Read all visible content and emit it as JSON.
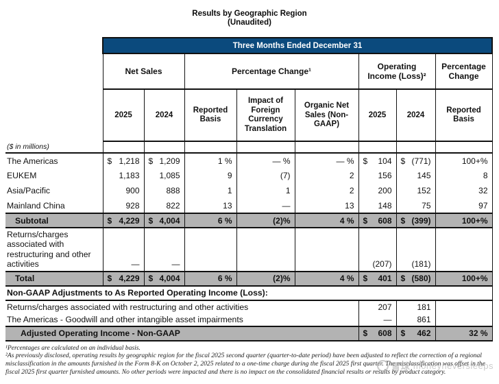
{
  "title": {
    "line1": "Results by Geographic Region",
    "line2": "(Unaudited)"
  },
  "banner": "Three Months Ended December 31",
  "colors": {
    "banner_bg": "#0b4a7d",
    "banner_text": "#ffffff",
    "gray_row_bg": "#b3b3b3",
    "border": "#111111"
  },
  "header_groups": {
    "net_sales": "Net Sales",
    "pct_change": "Percentage Change¹",
    "op_income": "Operating Income (Loss)²",
    "pct_change2": "Percentage Change"
  },
  "subheaders": {
    "c1": "2025",
    "c2": "2024",
    "c3": "Reported Basis",
    "c4": "Impact of Foreign Currency Translation",
    "c5": "Organic Net Sales (Non-GAAP)",
    "c6": "2025",
    "c7": "2024",
    "c8": "Reported Basis"
  },
  "units_note": "($ in millions)",
  "rows": {
    "americas": {
      "label": "The Americas",
      "c1d": "$",
      "c1": "1,218",
      "c2d": "$",
      "c2": "1,209",
      "c3": "1 %",
      "c4": "— %",
      "c5": "— %",
      "c6d": "$",
      "c6": "104",
      "c7d": "$",
      "c7": "(771)",
      "c8": "100+%"
    },
    "eukem": {
      "label": "EUKEM",
      "c1": "1,183",
      "c2": "1,085",
      "c3": "9",
      "c4": "(7)",
      "c5": "2",
      "c6": "156",
      "c7": "145",
      "c8": "8"
    },
    "asia_pacific": {
      "label": "Asia/Pacific",
      "c1": "900",
      "c2": "888",
      "c3": "1",
      "c4": "1",
      "c5": "2",
      "c6": "200",
      "c7": "152",
      "c8": "32"
    },
    "mainland_china": {
      "label": "Mainland China",
      "c1": "928",
      "c2": "822",
      "c3": "13",
      "c4": "—",
      "c5": "13",
      "c6": "148",
      "c7": "75",
      "c8": "97"
    },
    "subtotal": {
      "label": "Subtotal",
      "c1d": "$",
      "c1": "4,229",
      "c2d": "$",
      "c2": "4,004",
      "c3": "6 %",
      "c4": "(2)%",
      "c5": "4 %",
      "c6d": "$",
      "c6": "608",
      "c7d": "$",
      "c7": "(399)",
      "c8": "100+%"
    },
    "returns_charges": {
      "label": "Returns/charges associated with restructuring and other activities",
      "c1": "—",
      "c2": "—",
      "c6": "(207)",
      "c7": "(181)"
    },
    "total": {
      "label": "Total",
      "c1d": "$",
      "c1": "4,229",
      "c2d": "$",
      "c2": "4,004",
      "c3": "6 %",
      "c4": "(2)%",
      "c5": "4 %",
      "c6d": "$",
      "c6": "401",
      "c7d": "$",
      "c7": "(580)",
      "c8": "100+%"
    }
  },
  "nongaap": {
    "heading": "Non-GAAP Adjustments to As Reported Operating Income (Loss):",
    "row1": {
      "label": "Returns/charges associated with restructuring and other activities",
      "c6": "207",
      "c7": "181"
    },
    "row2": {
      "label": "The Americas - Goodwill and other intangible asset impairments",
      "c6": "—",
      "c7": "861"
    },
    "adjusted": {
      "label": "Adjusted Operating Income - Non-GAAP",
      "c6d": "$",
      "c6": "608",
      "c7d": "$",
      "c7": "462",
      "c8": "32 %"
    }
  },
  "footnotes": {
    "f1": "¹Percentages are calculated on an individual basis.",
    "f2": "²As previously disclosed, operating results by geographic region for the fiscal 2025 second quarter (quarter-to-date period) have been adjusted to reflect the correction of a regional misclassification in the amounts furnished in the Form 8-K on October 2, 2025 related to a one-time charge during the fiscal 2025 first quarter. The misclassification was offset in the fiscal 2025 first quarter furnished amounts. No other periods were impacted and there is no impact on the consolidated financial results or results by product category."
  },
  "watermark": {
    "cn": "雪球",
    "en": "moneyneversleeps"
  }
}
